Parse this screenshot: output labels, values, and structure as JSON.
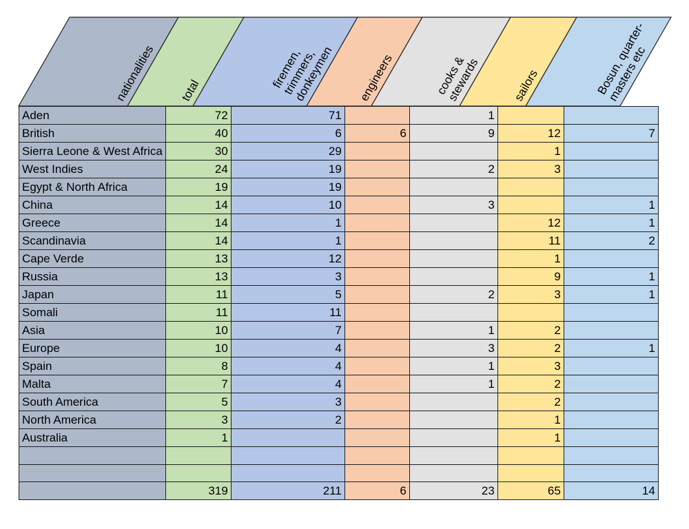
{
  "columns": [
    {
      "key": "nationalities",
      "label_lines": [
        "nationalities"
      ],
      "color": "#adb9ca"
    },
    {
      "key": "total",
      "label_lines": [
        "total"
      ],
      "color": "#c5e0b3"
    },
    {
      "key": "firemen",
      "label_lines": [
        "firemen,",
        "trimmers,",
        "donkeymen"
      ],
      "color": "#b4c6e7"
    },
    {
      "key": "engineers",
      "label_lines": [
        "engineers"
      ],
      "color": "#f8cbad"
    },
    {
      "key": "cooks",
      "label_lines": [
        "cooks &",
        "stewards"
      ],
      "color": "#e2e2e2"
    },
    {
      "key": "sailors",
      "label_lines": [
        "sailors"
      ],
      "color": "#ffe699"
    },
    {
      "key": "bosun",
      "label_lines": [
        "Bosun, quarter-",
        "masters etc"
      ],
      "color": "#bdd7ee"
    }
  ],
  "rows": [
    [
      "Aden",
      "72",
      "71",
      "",
      "1",
      "",
      ""
    ],
    [
      "British",
      "40",
      "6",
      "6",
      "9",
      "12",
      "7"
    ],
    [
      "Sierra Leone & West Africa",
      "30",
      "29",
      "",
      "",
      "1",
      ""
    ],
    [
      "West Indies",
      "24",
      "19",
      "",
      "2",
      "3",
      ""
    ],
    [
      "Egypt & North Africa",
      "19",
      "19",
      "",
      "",
      "",
      ""
    ],
    [
      "China",
      "14",
      "10",
      "",
      "3",
      "",
      "1"
    ],
    [
      "Greece",
      "14",
      "1",
      "",
      "",
      "12",
      "1"
    ],
    [
      "Scandinavia",
      "14",
      "1",
      "",
      "",
      "11",
      "2"
    ],
    [
      "Cape Verde",
      "13",
      "12",
      "",
      "",
      "1",
      ""
    ],
    [
      "Russia",
      "13",
      "3",
      "",
      "",
      "9",
      "1"
    ],
    [
      "Japan",
      "11",
      "5",
      "",
      "2",
      "3",
      "1"
    ],
    [
      "Somali",
      "11",
      "11",
      "",
      "",
      "",
      ""
    ],
    [
      "Asia",
      "10",
      "7",
      "",
      "1",
      "2",
      ""
    ],
    [
      "Europe",
      "10",
      "4",
      "",
      "3",
      "2",
      "1"
    ],
    [
      "Spain",
      "8",
      "4",
      "",
      "1",
      "3",
      ""
    ],
    [
      "Malta",
      "7",
      "4",
      "",
      "1",
      "2",
      ""
    ],
    [
      "South America",
      "5",
      "3",
      "",
      "",
      "2",
      ""
    ],
    [
      "North America",
      "3",
      "2",
      "",
      "",
      "1",
      ""
    ],
    [
      "Australia",
      "1",
      "",
      "",
      "",
      "1",
      ""
    ],
    [
      "",
      "",
      "",
      "",
      "",
      "",
      ""
    ],
    [
      "",
      "",
      "",
      "",
      "",
      "",
      ""
    ],
    [
      "",
      "319",
      "211",
      "6",
      "23",
      "65",
      "14"
    ]
  ]
}
